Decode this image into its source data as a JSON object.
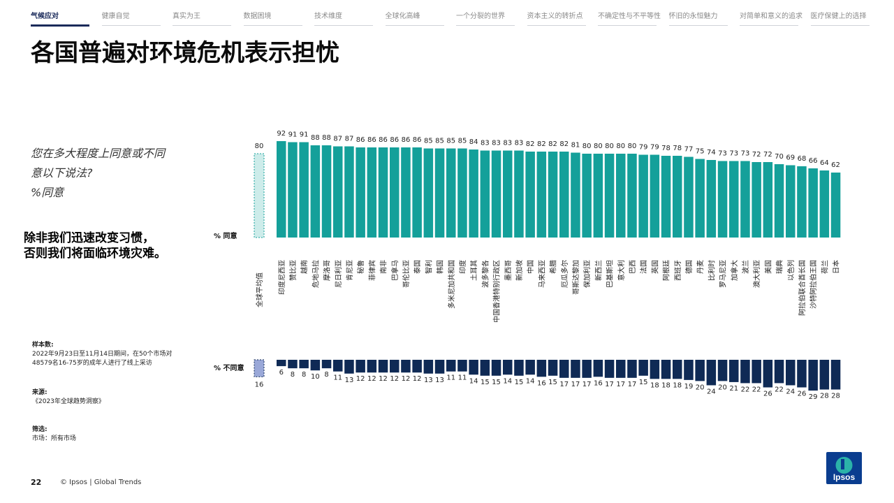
{
  "nav": {
    "tabs": [
      {
        "label": "气候应对",
        "active": true
      },
      {
        "label": "健康自觉",
        "active": false
      },
      {
        "label": "真实为王",
        "active": false
      },
      {
        "label": "数据困境",
        "active": false
      },
      {
        "label": "技术维度",
        "active": false
      },
      {
        "label": "全球化高峰",
        "active": false
      },
      {
        "label": "一个分裂的世界",
        "active": false
      },
      {
        "label": "资本主义的转折点",
        "active": false
      },
      {
        "label": "不确定性与不平等性",
        "active": false
      },
      {
        "label": "怀旧的永恒魅力",
        "active": false
      },
      {
        "label": "对简单和意义的追求",
        "active": false
      },
      {
        "label": "医疗保健上的选择",
        "active": false
      }
    ]
  },
  "page": {
    "title": "各国普遍对环境危机表示担忧",
    "question_lines": [
      "您在多大程度上同意或不同",
      "意以下说法?",
      "%同意"
    ],
    "statement_lines": [
      "除非我们迅速改变习惯，",
      "否则我们将面临环境灾难。"
    ]
  },
  "notes": {
    "sample_heading": "样本数:",
    "sample_lines": [
      "2022年9月23日至11月14日期间，在50个市场对",
      "48579名16-75岁的成年人进行了线上采访"
    ],
    "source_heading": "来源:",
    "source_line": "《2023年全球趋势洞察》",
    "filter_heading": "筛选:",
    "filter_line": "市场：所有市场"
  },
  "footer": {
    "page_number": "22",
    "copyright": "© Ipsos | Global Trends",
    "logo_text": "Ipsos"
  },
  "colors": {
    "agree": "#14a09a",
    "disagree": "#0f2a55",
    "average_agree": "#cdecea",
    "average_disagree": "#9aa8d8",
    "nav_active": "#1a2a5a"
  },
  "chart_data": {
    "type": "bar",
    "agree_label": "% 同意",
    "disagree_label": "% 不同意",
    "average": {
      "name": "全球平均值",
      "agree": 80,
      "disagree": 16
    },
    "categories": [
      "印度尼西亚",
      "赞比亚",
      "越南",
      "危地马拉",
      "摩洛哥",
      "尼日利亚",
      "肯尼亚",
      "秘鲁",
      "菲律宾",
      "南非",
      "巴拿马",
      "哥伦比亚",
      "泰国",
      "智利",
      "韩国",
      "多米尼加共和国",
      "印度",
      "土耳其",
      "波多黎各",
      "中国香港特别行政区",
      "墨西哥",
      "新加坡",
      "中国",
      "马来西亚",
      "希腊",
      "厄瓜多尔",
      "哥斯达黎加",
      "保加利亚",
      "新西兰",
      "巴基斯坦",
      "意大利",
      "巴西",
      "法国",
      "英国",
      "阿根廷",
      "西班牙",
      "德国",
      "丹麦",
      "比利时",
      "罗马尼亚",
      "加拿大",
      "波兰",
      "澳大利亚",
      "美国",
      "瑞典",
      "以色列",
      "阿拉伯联合酋长国",
      "沙特阿拉伯王国",
      "荷兰",
      "日本"
    ],
    "series": [
      {
        "name": "% 同意",
        "values": [
          92,
          91,
          91,
          88,
          88,
          87,
          87,
          86,
          86,
          86,
          86,
          86,
          86,
          85,
          85,
          85,
          85,
          84,
          83,
          83,
          83,
          83,
          82,
          82,
          82,
          82,
          81,
          80,
          80,
          80,
          80,
          80,
          79,
          79,
          78,
          78,
          77,
          75,
          74,
          73,
          73,
          73,
          72,
          72,
          70,
          69,
          68,
          66,
          64,
          62
        ]
      },
      {
        "name": "% 不同意",
        "values": [
          6,
          8,
          8,
          10,
          8,
          11,
          13,
          12,
          12,
          12,
          12,
          12,
          12,
          13,
          13,
          11,
          11,
          14,
          15,
          15,
          14,
          15,
          14,
          16,
          15,
          17,
          17,
          17,
          16,
          17,
          17,
          17,
          15,
          18,
          18,
          18,
          19,
          20,
          24,
          20,
          21,
          22,
          22,
          26,
          22,
          24,
          26,
          29,
          28,
          28
        ]
      }
    ]
  }
}
